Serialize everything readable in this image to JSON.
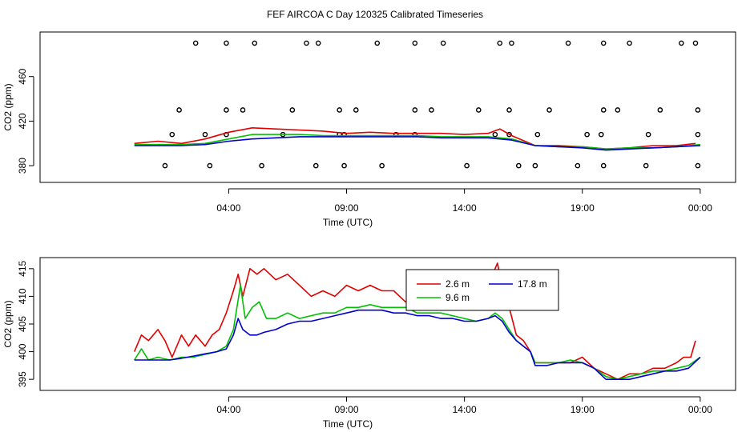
{
  "title": "FEF AIRCOA C  Day 120325  Calibrated Timeseries",
  "colors": {
    "s1": "#e00000",
    "s2": "#00c000",
    "s3": "#0000cc",
    "axis": "#000000",
    "bg": "#ffffff"
  },
  "chart_data": [
    {
      "type": "line",
      "xlabel": "Time (UTC)",
      "ylabel": "CO2 (ppm)",
      "xlim": [
        -4,
        25.5
      ],
      "ylim": [
        365,
        500
      ],
      "xticks": [
        4,
        9,
        14,
        19,
        24
      ],
      "xtick_labels": [
        "04:00",
        "09:00",
        "14:00",
        "19:00",
        "00:00"
      ],
      "yticks": [
        380,
        420,
        460
      ],
      "ytick_labels": [
        "380",
        "420",
        "460"
      ],
      "series": [
        {
          "color_key": "s1",
          "x": [
            0,
            1,
            2,
            3,
            4,
            5,
            6,
            7,
            8,
            9,
            10,
            11,
            12,
            13,
            14,
            15,
            15.5,
            16,
            17,
            18,
            19,
            20,
            21,
            22,
            23,
            23.8
          ],
          "y": [
            400,
            402,
            400,
            404,
            410,
            414,
            413,
            412,
            411,
            409,
            410,
            409,
            409,
            409,
            408,
            409,
            413,
            407,
            398,
            398,
            397,
            395,
            396,
            398,
            398,
            400
          ]
        },
        {
          "color_key": "s2",
          "x": [
            0,
            1,
            2,
            3,
            4,
            5,
            6,
            7,
            8,
            9,
            10,
            11,
            12,
            13,
            14,
            15,
            16,
            17,
            18,
            19,
            20,
            21,
            22,
            23,
            24
          ],
          "y": [
            399,
            399,
            399,
            400,
            404,
            408,
            408,
            408,
            407,
            407,
            407,
            407,
            407,
            406,
            406,
            406,
            404,
            398,
            397,
            397,
            395,
            396,
            396,
            397,
            399
          ]
        },
        {
          "color_key": "s3",
          "x": [
            0,
            1,
            2,
            3,
            4,
            5,
            6,
            7,
            8,
            9,
            10,
            11,
            12,
            13,
            14,
            15,
            16,
            17,
            18,
            19,
            20,
            21,
            22,
            23,
            24
          ],
          "y": [
            398,
            398,
            398,
            399,
            402,
            404,
            405,
            406,
            406,
            406,
            406,
            406,
            406,
            405,
            405,
            405,
            403,
            398,
            397,
            396,
            394,
            395,
            396,
            397,
            398
          ]
        }
      ],
      "scatter": {
        "x": [
          1.3,
          3.2,
          5.4,
          7.7,
          8.9,
          10.5,
          14.1,
          16.3,
          17.0,
          18.8,
          19.9,
          21.7,
          23.9,
          1.9,
          3.9,
          4.6,
          6.7,
          8.7,
          9.4,
          11.9,
          12.6,
          14.6,
          15.9,
          17.6,
          19.9,
          20.5,
          22.3,
          23.9,
          1.6,
          3.0,
          3.9,
          6.3,
          8.7,
          8.9,
          11.1,
          11.9,
          15.3,
          15.9,
          17.1,
          19.2,
          19.8,
          21.8,
          23.9,
          2.6,
          3.9,
          5.1,
          7.3,
          7.8,
          10.3,
          11.9,
          13.1,
          15.5,
          16.0,
          18.4,
          19.9,
          21.0,
          23.2,
          23.8
        ],
        "y": [
          380,
          380,
          380,
          380,
          380,
          380,
          380,
          380,
          380,
          380,
          380,
          380,
          380,
          430,
          430,
          430,
          430,
          430,
          430,
          430,
          430,
          430,
          430,
          430,
          430,
          430,
          430,
          430,
          408,
          408,
          408,
          408,
          408,
          408,
          408,
          408,
          408,
          408,
          408,
          408,
          408,
          408,
          408,
          490,
          490,
          490,
          490,
          490,
          490,
          490,
          490,
          490,
          490,
          490,
          490,
          490,
          490,
          490
        ]
      }
    },
    {
      "type": "line",
      "xlabel": "Time (UTC)",
      "ylabel": "CO2 (ppm)",
      "xlim": [
        -4,
        25.5
      ],
      "ylim": [
        393,
        417
      ],
      "xticks": [
        4,
        9,
        14,
        19,
        24
      ],
      "xtick_labels": [
        "04:00",
        "09:00",
        "14:00",
        "19:00",
        "00:00"
      ],
      "yticks": [
        395,
        400,
        405,
        410,
        415
      ],
      "ytick_labels": [
        "395",
        "400",
        "405",
        "410",
        "415"
      ],
      "legend": {
        "position": "top-right",
        "entries": [
          {
            "label": "2.6 m",
            "color_key": "s1"
          },
          {
            "label": "17.8 m",
            "color_key": "s3"
          },
          {
            "label": "9.6 m",
            "color_key": "s2"
          }
        ]
      },
      "series": [
        {
          "name": "2.6 m",
          "color_key": "s1",
          "x": [
            0,
            0.3,
            0.6,
            1.0,
            1.3,
            1.6,
            2.0,
            2.3,
            2.6,
            3.0,
            3.3,
            3.6,
            3.9,
            4.2,
            4.4,
            4.6,
            4.9,
            5.2,
            5.5,
            6.0,
            6.5,
            7.0,
            7.5,
            8.0,
            8.5,
            9.0,
            9.5,
            10.0,
            10.5,
            11.0,
            11.5,
            12.0,
            12.5,
            13.0,
            13.5,
            14.0,
            14.5,
            15.0,
            15.4,
            15.6,
            15.9,
            16.2,
            16.5,
            16.8,
            17.0,
            17.5,
            18.0,
            18.5,
            19.0,
            19.5,
            20.0,
            20.5,
            21.0,
            21.5,
            22.0,
            22.5,
            23.0,
            23.3,
            23.6,
            23.8
          ],
          "y": [
            400,
            403,
            402,
            404,
            402,
            399,
            403,
            401,
            403,
            401,
            403,
            404,
            407,
            411,
            414,
            410,
            415,
            414,
            415,
            413,
            414,
            412,
            410,
            411,
            410,
            412,
            411,
            412,
            411,
            411,
            409,
            410,
            408,
            411,
            410,
            411,
            409,
            412,
            416,
            412,
            408,
            403,
            402,
            400,
            398,
            398,
            398,
            398,
            399,
            397,
            396,
            395,
            396,
            396,
            397,
            397,
            398,
            399,
            399,
            402
          ]
        },
        {
          "name": "9.6 m",
          "color_key": "s2",
          "x": [
            0,
            0.3,
            0.6,
            1.0,
            1.5,
            2.0,
            2.5,
            3.0,
            3.5,
            3.9,
            4.2,
            4.5,
            4.7,
            5.0,
            5.3,
            5.6,
            6.0,
            6.5,
            7.0,
            7.5,
            8.0,
            8.5,
            9.0,
            9.5,
            10.0,
            10.5,
            11.0,
            11.5,
            12.0,
            12.5,
            13.0,
            13.5,
            14.0,
            14.5,
            15.0,
            15.3,
            15.6,
            15.9,
            16.2,
            16.5,
            16.8,
            17.0,
            17.5,
            18.0,
            18.5,
            19.0,
            19.5,
            20.0,
            20.5,
            21.0,
            21.5,
            22.0,
            22.5,
            23.0,
            23.5,
            24.0
          ],
          "y": [
            398.5,
            400.5,
            398.5,
            399,
            398.5,
            399,
            399,
            399.5,
            400,
            401,
            404,
            412,
            406,
            408,
            409,
            406,
            406,
            407,
            406,
            406.5,
            407,
            407,
            408,
            408,
            408.5,
            408,
            408,
            408,
            407,
            407,
            407,
            406.5,
            406,
            405.5,
            406,
            407,
            406,
            404,
            402,
            401,
            400,
            398,
            398,
            398,
            398.5,
            398,
            397,
            395.5,
            395,
            395.5,
            396,
            396.5,
            396.5,
            397,
            397.5,
            399
          ]
        },
        {
          "name": "17.8 m",
          "color_key": "s3",
          "x": [
            0,
            0.5,
            1.0,
            1.5,
            2.0,
            2.5,
            3.0,
            3.5,
            3.9,
            4.2,
            4.4,
            4.6,
            4.9,
            5.2,
            5.5,
            6.0,
            6.5,
            7.0,
            7.5,
            8.0,
            8.5,
            9.0,
            9.5,
            10.0,
            10.5,
            11.0,
            11.5,
            12.0,
            12.5,
            13.0,
            13.5,
            14.0,
            14.5,
            15.0,
            15.3,
            15.6,
            15.9,
            16.2,
            16.5,
            16.8,
            17.0,
            17.5,
            18.0,
            18.5,
            19.0,
            19.5,
            20.0,
            20.5,
            21.0,
            21.5,
            22.0,
            22.5,
            23.0,
            23.5,
            24.0
          ],
          "y": [
            398.5,
            398.5,
            398.5,
            398.5,
            398.8,
            399.2,
            399.6,
            400,
            400.5,
            403,
            406,
            404,
            403,
            403,
            403.5,
            404,
            405,
            405.5,
            405.5,
            406,
            406.5,
            407,
            407.5,
            407.5,
            407.5,
            407,
            407,
            406.5,
            406.5,
            406,
            406,
            405.5,
            405.5,
            406,
            406.5,
            405.5,
            403.5,
            402,
            401,
            400,
            397.5,
            397.5,
            398,
            398,
            398,
            397,
            395,
            395,
            395,
            395.5,
            396,
            396.5,
            396.5,
            397,
            399
          ]
        }
      ]
    }
  ]
}
